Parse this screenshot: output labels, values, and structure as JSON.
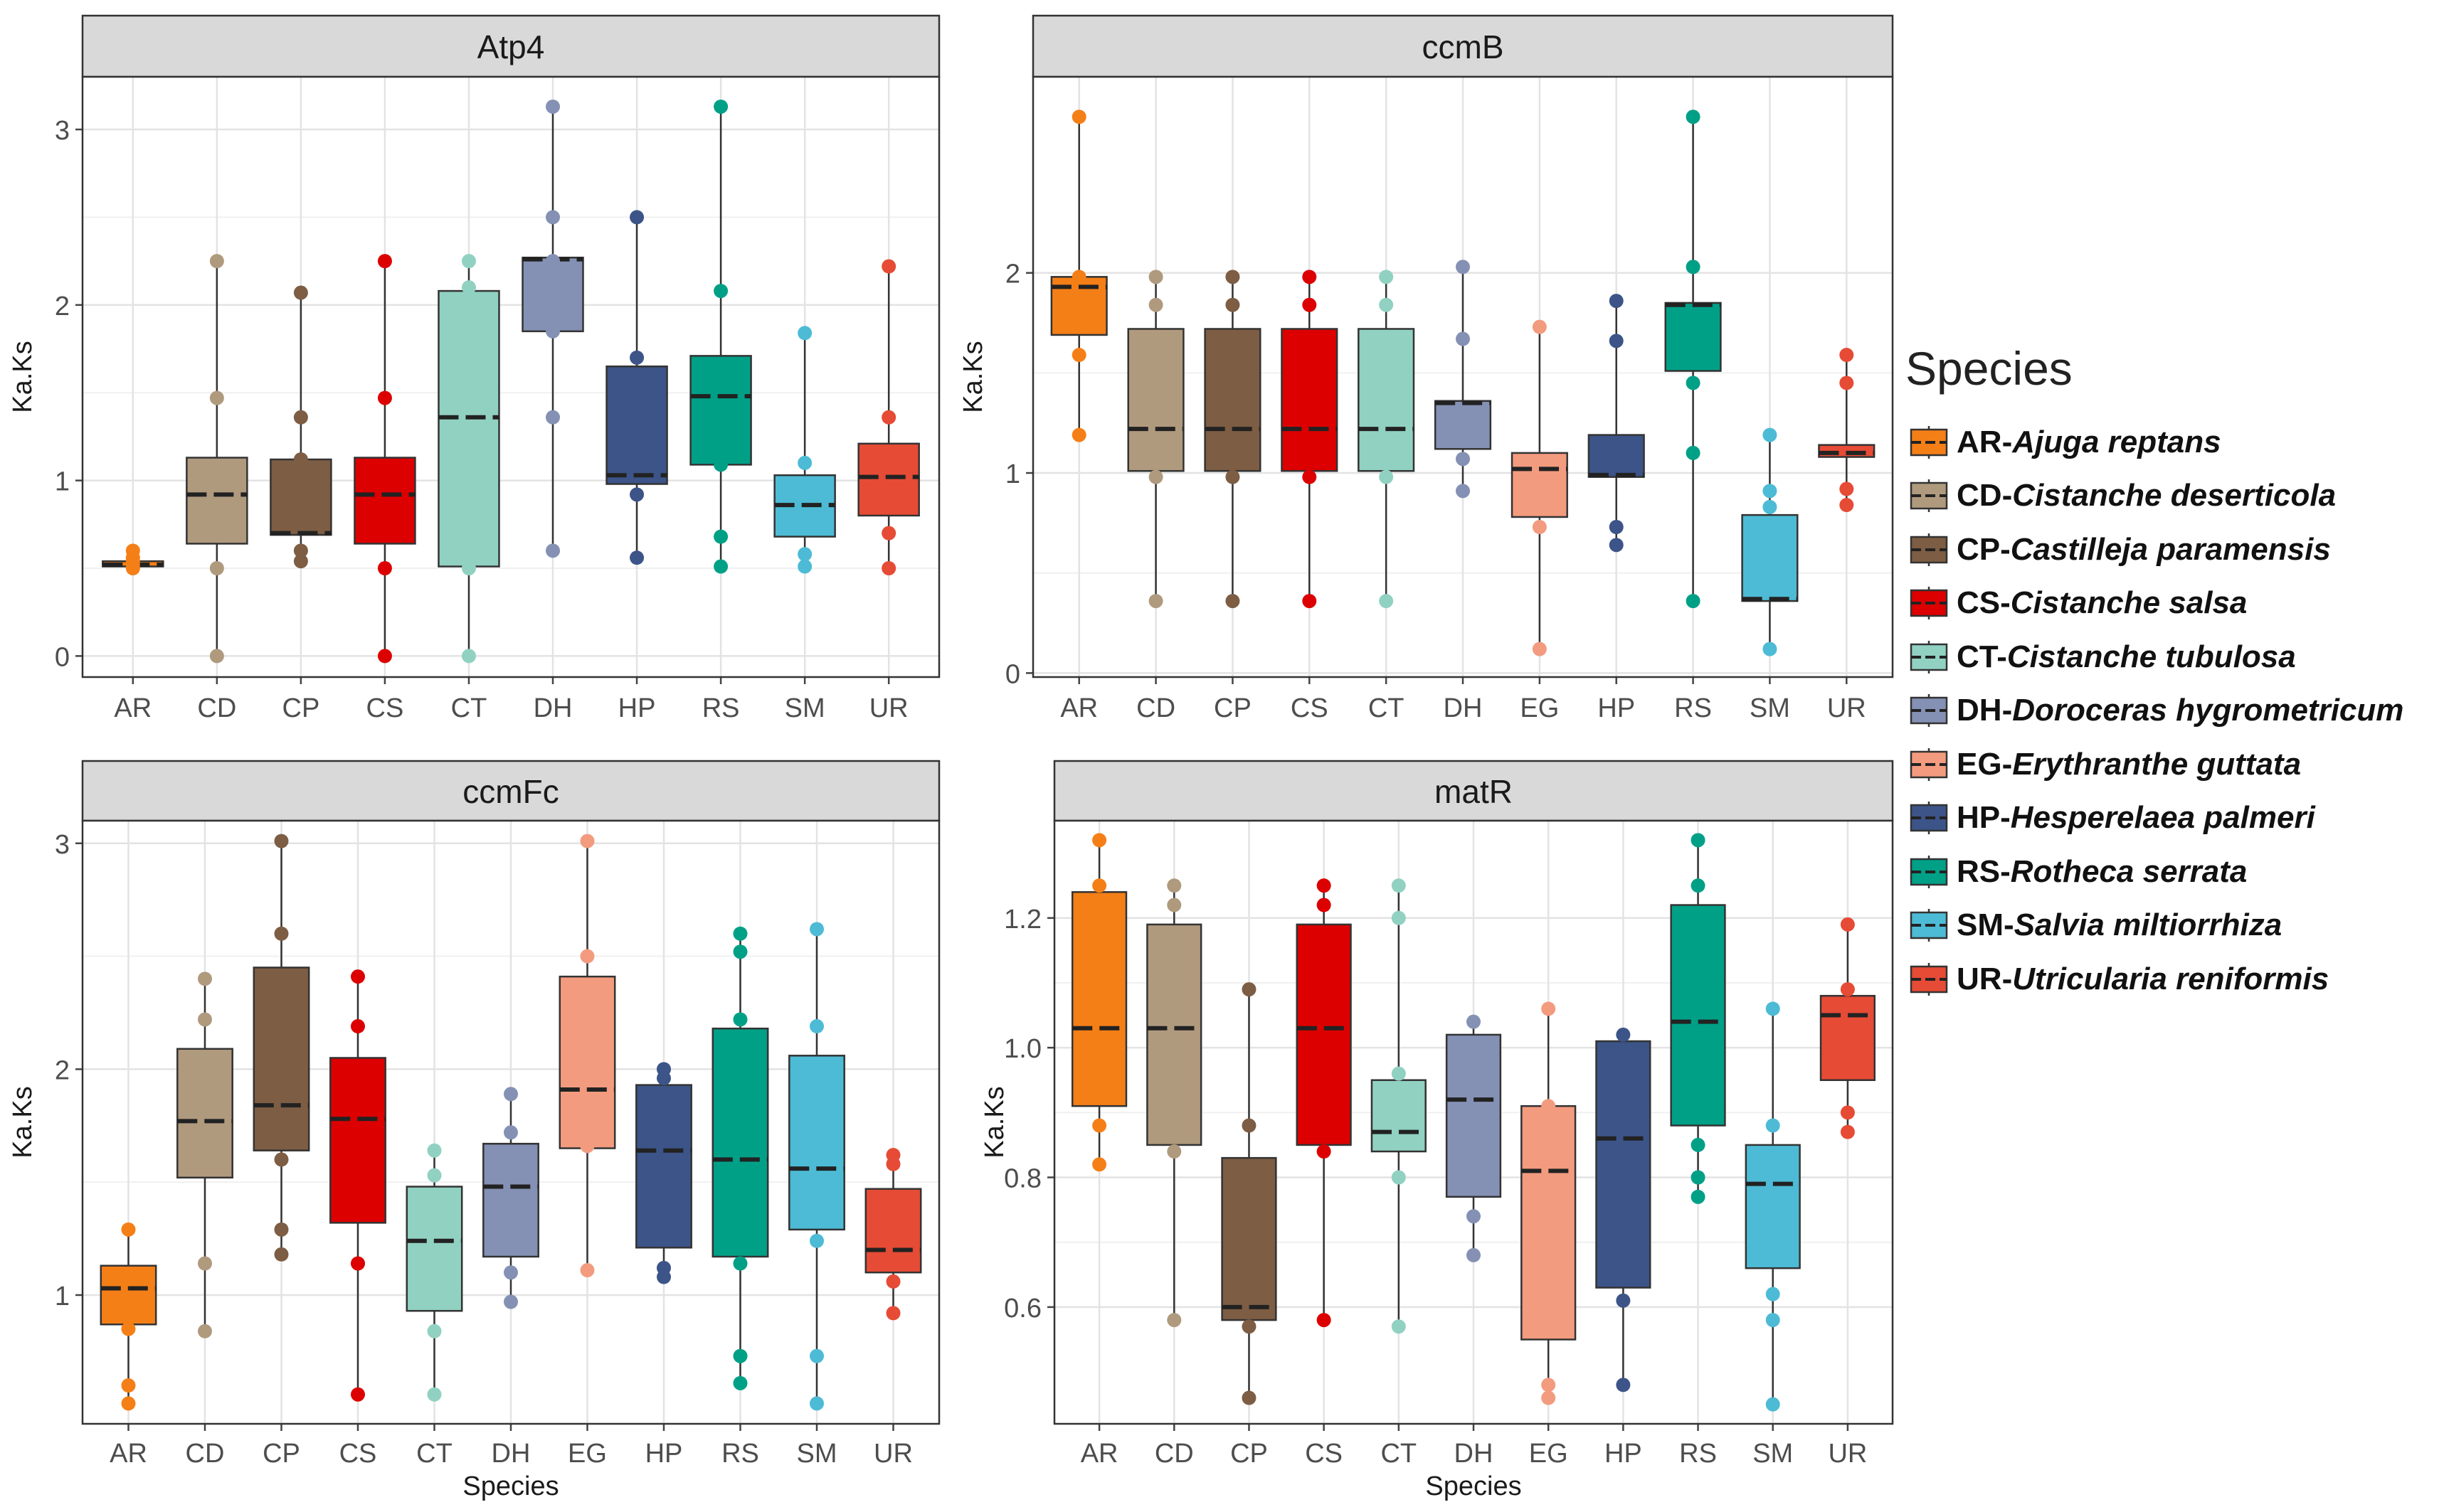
{
  "legend": {
    "title": "Species",
    "items": [
      {
        "code": "AR",
        "name": "Ajuga reptans",
        "color": "#F57F17"
      },
      {
        "code": "CD",
        "name": "Cistanche deserticola",
        "color": "#B09A7E"
      },
      {
        "code": "CP",
        "name": "Castilleja paramensis",
        "color": "#7D5D43"
      },
      {
        "code": "CS",
        "name": "Cistanche salsa",
        "color": "#DC0000"
      },
      {
        "code": "CT",
        "name": "Cistanche tubulosa",
        "color": "#91D1C2"
      },
      {
        "code": "DH",
        "name": "Doroceras hygrometricum",
        "color": "#8491B4"
      },
      {
        "code": "EG",
        "name": "Erythranthe guttata",
        "color": "#F39B7F"
      },
      {
        "code": "HP",
        "name": "Hesperelaea palmeri",
        "color": "#3C5488"
      },
      {
        "code": "RS",
        "name": "Rotheca serrata",
        "color": "#00A087"
      },
      {
        "code": "SM",
        "name": "Salvia miltiorrhiza",
        "color": "#4DBBD5"
      },
      {
        "code": "UR",
        "name": "Utricularia reniformis",
        "color": "#E64B35"
      }
    ]
  },
  "chart_data": [
    {
      "type": "box",
      "title": "Atp4",
      "xlabel": "",
      "ylabel": "Ka.Ks",
      "ylim": [
        -0.12,
        3.3
      ],
      "yticks": [
        0,
        1,
        2,
        3
      ],
      "categories": [
        "AR",
        "CD",
        "CP",
        "CS",
        "CT",
        "DH",
        "HP",
        "RS",
        "SM",
        "UR"
      ],
      "boxes": [
        {
          "cat": "AR",
          "q1": 0.51,
          "median": 0.52,
          "q3": 0.54,
          "whisker_low": 0.5,
          "whisker_high": 0.6,
          "points": [
            0.5,
            0.52,
            0.54,
            0.56,
            0.6
          ]
        },
        {
          "cat": "CD",
          "q1": 0.64,
          "median": 0.92,
          "q3": 1.13,
          "whisker_low": 0,
          "whisker_high": 2.25,
          "points": [
            0,
            0.5,
            1.47,
            2.25
          ]
        },
        {
          "cat": "CP",
          "q1": 0.69,
          "median": 0.7,
          "q3": 1.12,
          "whisker_low": 0.54,
          "whisker_high": 2.07,
          "points": [
            0.54,
            0.6,
            1.12,
            1.36,
            2.07
          ]
        },
        {
          "cat": "CS",
          "q1": 0.64,
          "median": 0.92,
          "q3": 1.13,
          "whisker_low": 0,
          "whisker_high": 2.25,
          "points": [
            0,
            0.5,
            1.47,
            2.25
          ]
        },
        {
          "cat": "CT",
          "q1": 0.51,
          "median": 1.36,
          "q3": 2.08,
          "whisker_low": 0,
          "whisker_high": 2.25,
          "points": [
            0,
            0.5,
            2.1,
            2.25
          ]
        },
        {
          "cat": "DH",
          "q1": 1.85,
          "median": 2.26,
          "q3": 2.27,
          "whisker_low": 0.6,
          "whisker_high": 3.13,
          "points": [
            0.6,
            1.36,
            1.85,
            2.25,
            2.5,
            3.13
          ]
        },
        {
          "cat": "HP",
          "q1": 0.98,
          "median": 1.03,
          "q3": 1.65,
          "whisker_low": 0.56,
          "whisker_high": 2.5,
          "points": [
            0.56,
            0.92,
            1.7,
            2.5
          ]
        },
        {
          "cat": "RS",
          "q1": 1.09,
          "median": 1.48,
          "q3": 1.71,
          "whisker_low": 0.51,
          "whisker_high": 3.13,
          "points": [
            0.51,
            0.68,
            1.09,
            2.08,
            3.13
          ]
        },
        {
          "cat": "SM",
          "q1": 0.68,
          "median": 0.86,
          "q3": 1.03,
          "whisker_low": 0.51,
          "whisker_high": 1.84,
          "points": [
            0.51,
            0.58,
            1.1,
            1.84
          ]
        },
        {
          "cat": "UR",
          "q1": 0.8,
          "median": 1.02,
          "q3": 1.21,
          "whisker_low": 0.5,
          "whisker_high": 2.22,
          "points": [
            0.5,
            0.7,
            1.36,
            2.22
          ]
        }
      ]
    },
    {
      "type": "box",
      "title": "ccmB",
      "xlabel": "",
      "ylabel": "Ka.Ks",
      "ylim": [
        -0.02,
        2.98
      ],
      "yticks": [
        0,
        1,
        2
      ],
      "categories": [
        "AR",
        "CD",
        "CP",
        "CS",
        "CT",
        "DH",
        "EG",
        "HP",
        "RS",
        "SM",
        "UR"
      ],
      "boxes": [
        {
          "cat": "AR",
          "q1": 1.69,
          "median": 1.93,
          "q3": 1.98,
          "whisker_low": 1.19,
          "whisker_high": 2.78,
          "points": [
            1.19,
            1.59,
            1.98,
            2.78
          ]
        },
        {
          "cat": "CD",
          "q1": 1.01,
          "median": 1.22,
          "q3": 1.72,
          "whisker_low": 0.36,
          "whisker_high": 1.98,
          "points": [
            0.36,
            0.98,
            1.84,
            1.98
          ]
        },
        {
          "cat": "CP",
          "q1": 1.01,
          "median": 1.22,
          "q3": 1.72,
          "whisker_low": 0.36,
          "whisker_high": 1.98,
          "points": [
            0.36,
            0.98,
            1.84,
            1.98
          ]
        },
        {
          "cat": "CS",
          "q1": 1.01,
          "median": 1.22,
          "q3": 1.72,
          "whisker_low": 0.36,
          "whisker_high": 1.98,
          "points": [
            0.36,
            0.98,
            1.84,
            1.98
          ]
        },
        {
          "cat": "CT",
          "q1": 1.01,
          "median": 1.22,
          "q3": 1.72,
          "whisker_low": 0.36,
          "whisker_high": 1.98,
          "points": [
            0.36,
            0.98,
            1.84,
            1.98
          ]
        },
        {
          "cat": "DH",
          "q1": 1.12,
          "median": 1.35,
          "q3": 1.36,
          "whisker_low": 0.91,
          "whisker_high": 2.03,
          "points": [
            0.91,
            1.07,
            1.67,
            2.03
          ]
        },
        {
          "cat": "EG",
          "q1": 0.78,
          "median": 1.02,
          "q3": 1.1,
          "whisker_low": 0.12,
          "whisker_high": 1.73,
          "points": [
            0.12,
            0.73,
            1.73
          ]
        },
        {
          "cat": "HP",
          "q1": 0.98,
          "median": 0.99,
          "q3": 1.19,
          "whisker_low": 0.64,
          "whisker_high": 1.86,
          "points": [
            0.64,
            0.73,
            1.66,
            1.86
          ]
        },
        {
          "cat": "RS",
          "q1": 1.51,
          "median": 1.84,
          "q3": 1.85,
          "whisker_low": 0.36,
          "whisker_high": 2.78,
          "points": [
            0.36,
            1.1,
            1.45,
            2.03,
            2.78
          ]
        },
        {
          "cat": "SM",
          "q1": 0.36,
          "median": 0.37,
          "q3": 0.79,
          "whisker_low": 0.12,
          "whisker_high": 1.19,
          "points": [
            0.12,
            0.83,
            0.91,
            1.19
          ]
        },
        {
          "cat": "UR",
          "q1": 1.08,
          "median": 1.1,
          "q3": 1.14,
          "whisker_low": 0.84,
          "whisker_high": 1.59,
          "points": [
            0.84,
            0.92,
            1.45,
            1.59
          ]
        }
      ]
    },
    {
      "type": "box",
      "title": "ccmFc",
      "xlabel": "Species",
      "ylabel": "Ka.Ks",
      "ylim": [
        0.43,
        3.1
      ],
      "yticks": [
        1,
        2,
        3
      ],
      "categories": [
        "AR",
        "CD",
        "CP",
        "CS",
        "CT",
        "DH",
        "EG",
        "HP",
        "RS",
        "SM",
        "UR"
      ],
      "boxes": [
        {
          "cat": "AR",
          "q1": 0.87,
          "median": 1.03,
          "q3": 1.13,
          "whisker_low": 0.52,
          "whisker_high": 1.29,
          "points": [
            0.52,
            0.6,
            0.85,
            1.29
          ]
        },
        {
          "cat": "CD",
          "q1": 1.52,
          "median": 1.77,
          "q3": 2.09,
          "whisker_low": 0.84,
          "whisker_high": 2.4,
          "points": [
            0.84,
            1.14,
            2.22,
            2.4
          ]
        },
        {
          "cat": "CP",
          "q1": 1.64,
          "median": 1.84,
          "q3": 2.45,
          "whisker_low": 1.18,
          "whisker_high": 3.01,
          "points": [
            1.18,
            1.29,
            1.6,
            2.6,
            3.01
          ]
        },
        {
          "cat": "CS",
          "q1": 1.32,
          "median": 1.78,
          "q3": 2.05,
          "whisker_low": 0.56,
          "whisker_high": 2.41,
          "points": [
            0.56,
            1.14,
            2.19,
            2.41
          ]
        },
        {
          "cat": "CT",
          "q1": 0.93,
          "median": 1.24,
          "q3": 1.48,
          "whisker_low": 0.56,
          "whisker_high": 1.64,
          "points": [
            0.56,
            0.84,
            1.53,
            1.64
          ]
        },
        {
          "cat": "DH",
          "q1": 1.17,
          "median": 1.48,
          "q3": 1.67,
          "whisker_low": 0.97,
          "whisker_high": 1.89,
          "points": [
            0.97,
            1.1,
            1.72,
            1.89
          ]
        },
        {
          "cat": "EG",
          "q1": 1.65,
          "median": 1.91,
          "q3": 2.41,
          "whisker_low": 1.11,
          "whisker_high": 3.01,
          "points": [
            1.11,
            1.66,
            2.5,
            3.01
          ]
        },
        {
          "cat": "HP",
          "q1": 1.21,
          "median": 1.64,
          "q3": 1.93,
          "whisker_low": 1.08,
          "whisker_high": 2.0,
          "points": [
            1.08,
            1.12,
            1.96,
            2.0
          ]
        },
        {
          "cat": "RS",
          "q1": 1.17,
          "median": 1.6,
          "q3": 2.18,
          "whisker_low": 0.61,
          "whisker_high": 2.6,
          "points": [
            0.61,
            0.73,
            1.14,
            2.22,
            2.52,
            2.6
          ]
        },
        {
          "cat": "SM",
          "q1": 1.29,
          "median": 1.56,
          "q3": 2.06,
          "whisker_low": 0.52,
          "whisker_high": 2.62,
          "points": [
            0.52,
            0.73,
            1.24,
            2.19,
            2.62
          ]
        },
        {
          "cat": "UR",
          "q1": 1.1,
          "median": 1.2,
          "q3": 1.47,
          "whisker_low": 0.92,
          "whisker_high": 1.62,
          "points": [
            0.92,
            1.06,
            1.58,
            1.62
          ]
        }
      ]
    },
    {
      "type": "box",
      "title": "matR",
      "xlabel": "Species",
      "ylabel": "Ka.Ks",
      "ylim": [
        0.42,
        1.35
      ],
      "yticks": [
        0.6,
        0.8,
        1.0,
        1.2
      ],
      "categories": [
        "AR",
        "CD",
        "CP",
        "CS",
        "CT",
        "DH",
        "EG",
        "HP",
        "RS",
        "SM",
        "UR"
      ],
      "boxes": [
        {
          "cat": "AR",
          "q1": 0.91,
          "median": 1.03,
          "q3": 1.24,
          "whisker_low": 0.82,
          "whisker_high": 1.32,
          "points": [
            0.82,
            0.88,
            1.25,
            1.32
          ]
        },
        {
          "cat": "CD",
          "q1": 0.85,
          "median": 1.03,
          "q3": 1.19,
          "whisker_low": 0.58,
          "whisker_high": 1.25,
          "points": [
            0.58,
            0.84,
            1.22,
            1.25
          ]
        },
        {
          "cat": "CP",
          "q1": 0.58,
          "median": 0.6,
          "q3": 0.83,
          "whisker_low": 0.46,
          "whisker_high": 1.09,
          "points": [
            0.46,
            0.57,
            0.88,
            1.09
          ]
        },
        {
          "cat": "CS",
          "q1": 0.85,
          "median": 1.03,
          "q3": 1.19,
          "whisker_low": 0.58,
          "whisker_high": 1.25,
          "points": [
            0.58,
            0.84,
            1.22,
            1.25
          ]
        },
        {
          "cat": "CT",
          "q1": 0.84,
          "median": 0.87,
          "q3": 0.95,
          "whisker_low": 0.57,
          "whisker_high": 1.25,
          "points": [
            0.57,
            0.8,
            0.96,
            1.2,
            1.25
          ]
        },
        {
          "cat": "DH",
          "q1": 0.77,
          "median": 0.92,
          "q3": 1.02,
          "whisker_low": 0.68,
          "whisker_high": 1.04,
          "points": [
            0.68,
            0.74,
            1.04
          ]
        },
        {
          "cat": "EG",
          "q1": 0.55,
          "median": 0.81,
          "q3": 0.91,
          "whisker_low": 0.46,
          "whisker_high": 1.06,
          "points": [
            0.46,
            0.48,
            0.91,
            1.06
          ]
        },
        {
          "cat": "HP",
          "q1": 0.63,
          "median": 0.86,
          "q3": 1.01,
          "whisker_low": 0.48,
          "whisker_high": 1.02,
          "points": [
            0.48,
            0.61,
            1.02
          ]
        },
        {
          "cat": "RS",
          "q1": 0.88,
          "median": 1.04,
          "q3": 1.22,
          "whisker_low": 0.77,
          "whisker_high": 1.32,
          "points": [
            0.77,
            0.8,
            0.85,
            1.25,
            1.32
          ]
        },
        {
          "cat": "SM",
          "q1": 0.66,
          "median": 0.79,
          "q3": 0.85,
          "whisker_low": 0.45,
          "whisker_high": 1.06,
          "points": [
            0.45,
            0.58,
            0.62,
            0.88,
            1.06
          ]
        },
        {
          "cat": "UR",
          "q1": 0.95,
          "median": 1.05,
          "q3": 1.08,
          "whisker_low": 0.87,
          "whisker_high": 1.19,
          "points": [
            0.87,
            0.9,
            1.09,
            1.19
          ]
        }
      ]
    }
  ]
}
